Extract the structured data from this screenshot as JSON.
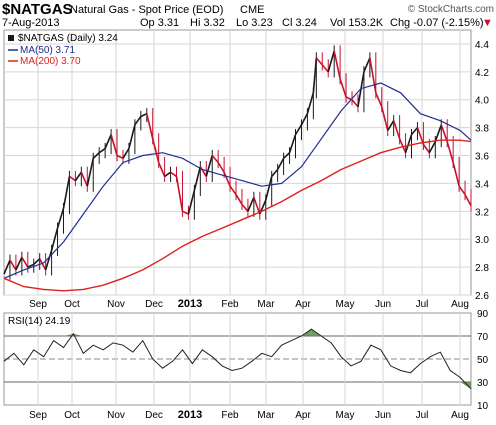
{
  "header": {
    "symbol": "$NATGAS",
    "description": "Natural Gas - Spot Price (EOD)",
    "exchange": "CME",
    "watermark": "© StockCharts.com",
    "date": "7-Aug-2013",
    "open": "Op 3.31",
    "high": "Hi 3.32",
    "low": "Lo 3.23",
    "close": "Cl 3.24",
    "volume": "Vol 153.2K",
    "change": "Chg -0.07 (-2.15%)",
    "change_arrow": "▼"
  },
  "legend": {
    "price": "$NATGAS (Daily) 3.24",
    "ma50": "MA(50) 3.71",
    "ma200": "MA(200) 3.70",
    "rsi": "RSI(14) 24.19"
  },
  "colors": {
    "price": "#1a1a1a",
    "price_down": "#c8102e",
    "ma50": "#1f2f8f",
    "ma200": "#e0201c",
    "rsi": "#222222",
    "rsi_overbought_fill": "#5a8a4a",
    "rsi_oversold_fill": "#5a8a4a",
    "grid": "#d6d6d6"
  },
  "chart_data": [
    {
      "type": "line",
      "title": "$NATGAS Natural Gas - Spot Price (EOD) CME",
      "x_labels": [
        "Sep",
        "Oct",
        "Nov",
        "Dec",
        "2013",
        "Feb",
        "Mar",
        "Apr",
        "May",
        "Jun",
        "Jul",
        "Aug"
      ],
      "ylim": [
        2.6,
        4.5
      ],
      "y_ticks": [
        2.6,
        2.8,
        3.0,
        3.2,
        3.4,
        3.6,
        3.8,
        4.0,
        4.2,
        4.4
      ],
      "grid": true,
      "legend_position": "top-left",
      "series": [
        {
          "name": "$NATGAS (Daily) 3.24",
          "x": [
            0,
            6,
            12,
            18,
            24,
            30,
            36,
            42,
            48,
            54,
            60,
            66,
            72,
            78,
            84,
            90,
            96,
            102,
            108,
            114,
            120,
            126,
            132,
            138,
            144,
            150,
            156,
            162,
            168,
            174,
            180,
            186,
            192,
            198,
            204,
            210,
            216,
            222,
            228,
            234,
            240,
            246,
            252,
            258,
            264,
            270,
            276,
            282,
            288,
            294,
            300,
            306,
            312,
            315,
            321,
            327,
            333,
            339,
            345,
            351,
            357,
            363,
            369,
            375,
            381,
            387,
            393,
            399,
            405,
            411,
            417,
            423,
            429,
            435,
            441,
            447,
            453,
            459,
            465,
            471
          ],
          "values": [
            2.75,
            2.85,
            2.78,
            2.87,
            2.8,
            2.82,
            2.86,
            2.78,
            2.92,
            3.08,
            3.22,
            3.45,
            3.42,
            3.48,
            3.38,
            3.58,
            3.62,
            3.65,
            3.75,
            3.6,
            3.58,
            3.65,
            3.82,
            3.88,
            3.9,
            3.72,
            3.55,
            3.45,
            3.48,
            3.45,
            3.2,
            3.18,
            3.35,
            3.52,
            3.45,
            3.6,
            3.55,
            3.48,
            3.38,
            3.32,
            3.25,
            3.2,
            3.3,
            3.18,
            3.28,
            3.45,
            3.5,
            3.58,
            3.62,
            3.75,
            3.82,
            3.9,
            4.05,
            4.3,
            4.25,
            4.2,
            4.35,
            4.15,
            4.02,
            4.0,
            3.95,
            4.2,
            4.3,
            4.05,
            3.95,
            3.78,
            3.85,
            3.72,
            3.62,
            3.75,
            3.8,
            3.68,
            3.62,
            3.7,
            3.82,
            3.7,
            3.55,
            3.38,
            3.32,
            3.24
          ]
        },
        {
          "name": "MA(50) 3.71",
          "x": [
            0,
            20,
            40,
            60,
            80,
            100,
            120,
            140,
            160,
            180,
            200,
            220,
            240,
            260,
            280,
            300,
            320,
            340,
            360,
            380,
            400,
            420,
            440,
            460,
            471
          ],
          "values": [
            2.72,
            2.78,
            2.83,
            2.98,
            3.18,
            3.38,
            3.55,
            3.6,
            3.62,
            3.58,
            3.5,
            3.46,
            3.42,
            3.38,
            3.4,
            3.52,
            3.72,
            3.92,
            4.08,
            4.12,
            4.05,
            3.9,
            3.85,
            3.78,
            3.71
          ]
        },
        {
          "name": "MA(200) 3.70",
          "x": [
            0,
            20,
            40,
            60,
            80,
            100,
            120,
            140,
            160,
            180,
            200,
            220,
            240,
            260,
            280,
            300,
            320,
            340,
            360,
            380,
            400,
            420,
            440,
            460,
            471
          ],
          "values": [
            2.72,
            2.66,
            2.64,
            2.63,
            2.64,
            2.67,
            2.72,
            2.78,
            2.86,
            2.95,
            3.02,
            3.08,
            3.14,
            3.2,
            3.27,
            3.35,
            3.42,
            3.5,
            3.56,
            3.62,
            3.66,
            3.69,
            3.71,
            3.71,
            3.7
          ]
        }
      ]
    },
    {
      "type": "line",
      "title": "RSI(14) 24.19",
      "x_labels": [
        "Sep",
        "Oct",
        "Nov",
        "Dec",
        "2013",
        "Feb",
        "Mar",
        "Apr",
        "May",
        "Jun",
        "Jul",
        "Aug"
      ],
      "ylim": [
        10,
        90
      ],
      "y_ticks": [
        10,
        30,
        50,
        70,
        90
      ],
      "reference_lines": [
        30,
        50,
        70
      ],
      "series": [
        {
          "name": "RSI(14) 24.19",
          "x": [
            0,
            10,
            20,
            30,
            40,
            50,
            60,
            70,
            80,
            90,
            100,
            110,
            120,
            130,
            140,
            150,
            160,
            170,
            180,
            190,
            200,
            210,
            220,
            230,
            240,
            250,
            260,
            270,
            280,
            290,
            300,
            310,
            320,
            330,
            340,
            350,
            360,
            370,
            380,
            390,
            400,
            410,
            420,
            430,
            440,
            450,
            460,
            471
          ],
          "values": [
            48,
            55,
            45,
            58,
            52,
            66,
            60,
            72,
            55,
            62,
            58,
            64,
            62,
            56,
            66,
            50,
            42,
            48,
            58,
            46,
            58,
            52,
            44,
            40,
            42,
            48,
            55,
            52,
            62,
            66,
            70,
            76,
            70,
            64,
            52,
            44,
            48,
            62,
            58,
            44,
            40,
            38,
            46,
            52,
            56,
            40,
            34,
            24
          ]
        }
      ]
    }
  ]
}
